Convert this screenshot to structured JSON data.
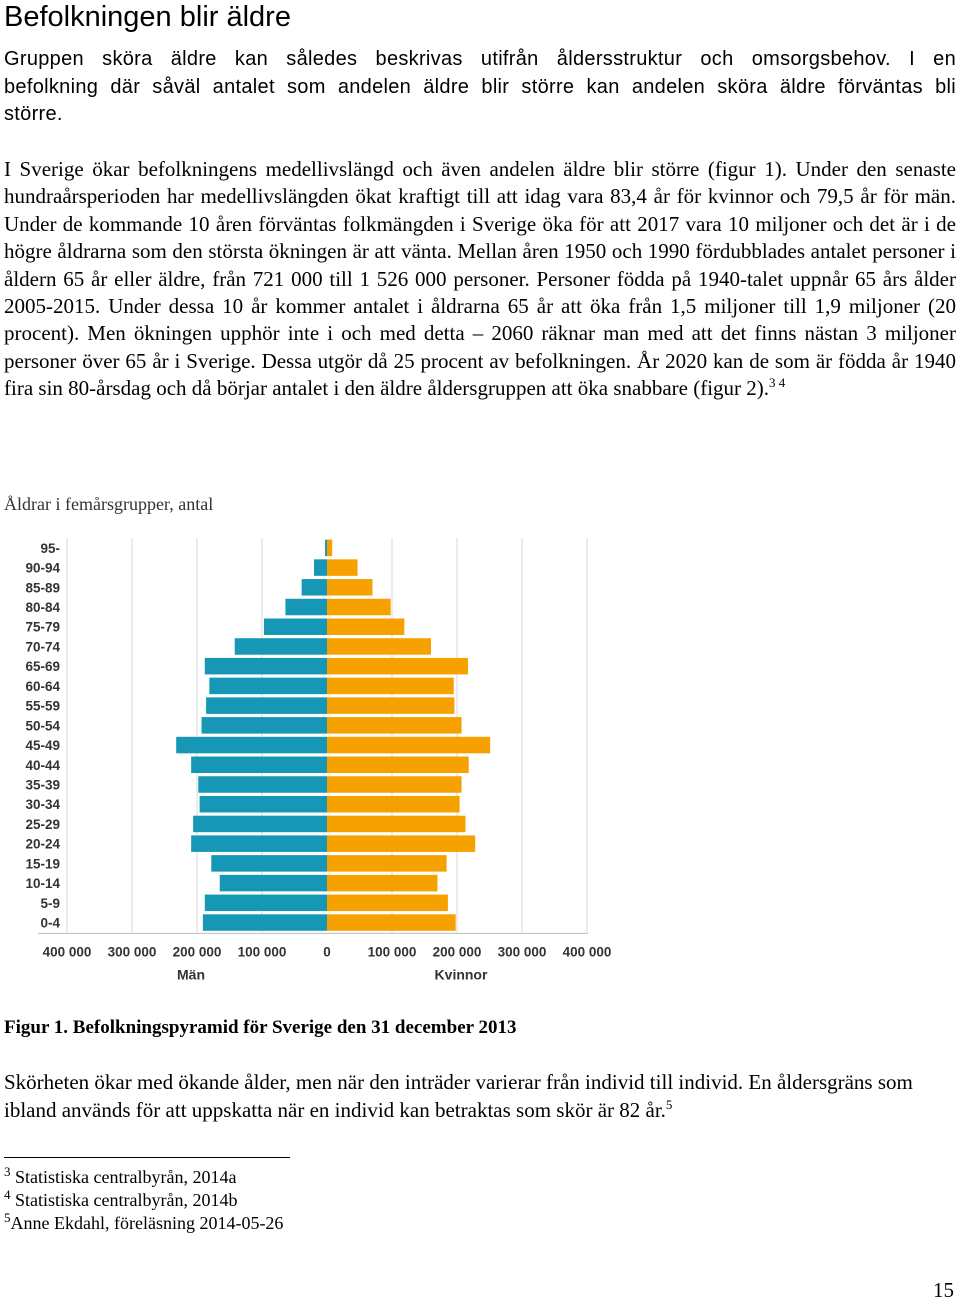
{
  "heading": "Befolkningen blir äldre",
  "para1": "Gruppen sköra äldre kan således beskrivas utifrån åldersstruktur och omsorgsbehov. I en befolkning där såväl antalet som andelen äldre blir större kan andelen sköra äldre förväntas bli större.",
  "para2": "I Sverige ökar befolkningens medellivslängd och även andelen äldre blir större (figur 1). Under den senaste hundraårsperioden har medellivslängden ökat kraftigt till att idag vara 83,4 år för kvinnor och 79,5 år för män. Under de kommande 10 åren förväntas folkmängden i Sverige öka för att 2017 vara 10 miljoner och det är i de högre åldrarna som den största ökningen är att vänta. Mellan åren 1950 och 1990 fördubblades antalet personer i åldern 65 år eller äldre, från 721 000 till 1 526 000 personer. Personer födda på 1940-talet uppnår 65 års ålder 2005-2015. Under dessa 10 år kommer antalet i åldrarna 65 år att öka från 1,5 miljoner till 1,9 miljoner (20 procent). Men ökningen upphör inte i och med detta – 2060 räknar man med att det finns nästan 3 miljoner personer över 65 år i Sverige. Dessa utgör då 25 procent av befolkningen. År 2020 kan de som är födda år 1940 fira sin 80-årsdag och då börjar antalet i den äldre åldersgruppen att öka snabbare (figur 2).",
  "para2_sup": "3 4",
  "chart_caption": "Åldrar i femårsgrupper, antal",
  "figure_caption": "Figur 1. Befolkningspyramid för Sverige den 31 december 2013",
  "para3": "Skörheten ökar med ökande ålder, men när den inträder varierar från individ till individ. En åldersgräns som ibland används för att uppskatta när en individ kan betraktas som skör är 82 år.",
  "para3_sup": "5",
  "footnotes": [
    {
      "num": "3",
      "text": " Statistiska centralbyrån, 2014a"
    },
    {
      "num": "4",
      "text": " Statistiska centralbyrån, 2014b"
    },
    {
      "num": "5",
      "text": "Anne Ekdahl, föreläsning 2014-05-26"
    }
  ],
  "page_number": "15",
  "chart_data": {
    "type": "bar",
    "orientation": "horizontal-pyramid",
    "categories": [
      "95-",
      "90-94",
      "85-89",
      "80-84",
      "75-79",
      "70-74",
      "65-69",
      "60-64",
      "55-59",
      "50-54",
      "45-49",
      "40-44",
      "35-39",
      "30-34",
      "25-29",
      "20-24",
      "15-19",
      "10-14",
      "5-9",
      "0-4"
    ],
    "series": [
      {
        "name": "Män",
        "color": "#1597b5",
        "values": [
          3000,
          20000,
          39000,
          64000,
          97000,
          142000,
          188000,
          181000,
          186000,
          193000,
          232000,
          209000,
          198000,
          196000,
          206000,
          209000,
          178000,
          165000,
          188000,
          191000
        ]
      },
      {
        "name": "Kvinnor",
        "color": "#f7a100",
        "values": [
          8000,
          47000,
          70000,
          98000,
          119000,
          160000,
          217000,
          195000,
          196000,
          207000,
          251000,
          218000,
          207000,
          204000,
          213000,
          228000,
          184000,
          170000,
          186000,
          198000
        ]
      }
    ],
    "xticks": [
      "400 000",
      "300 000",
      "200 000",
      "100 000",
      "0",
      "100 000",
      "200 000",
      "300 000",
      "400 000"
    ],
    "xlim": [
      0,
      400000
    ],
    "gridlines": true,
    "legend": "bottom"
  }
}
